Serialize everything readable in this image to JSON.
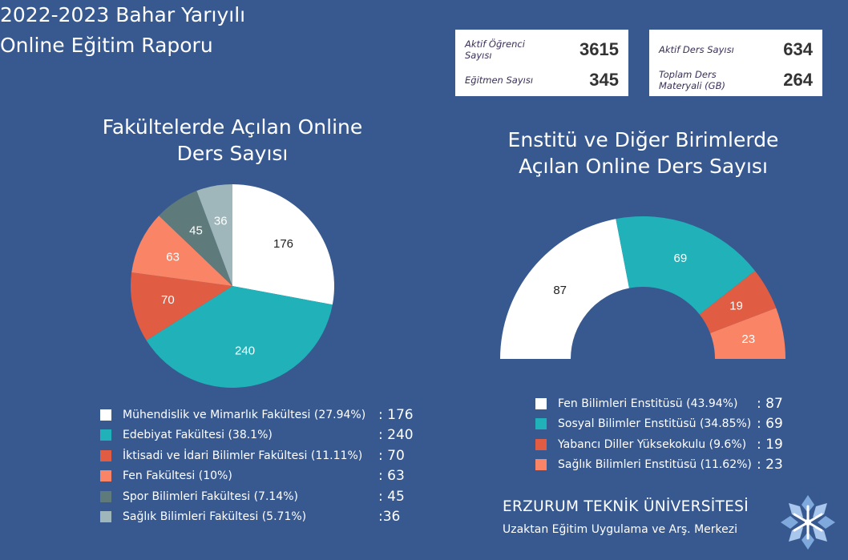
{
  "header": {
    "title_line1": "2022-2023 Bahar Yarıyılı",
    "title_line2": "Online Eğitim Raporu"
  },
  "stats": {
    "left": [
      {
        "label": "Aktif Öğrenci Sayısı",
        "value": "3615"
      },
      {
        "label": "Eğitmen Sayısı",
        "value": "345"
      }
    ],
    "right": [
      {
        "label": "Aktif Ders Sayısı",
        "value": "634"
      },
      {
        "label": "Toplam Ders Materyali (GB)",
        "value": "264"
      }
    ]
  },
  "chart_data": [
    {
      "type": "pie",
      "title_line1": "Fakültelerde Açılan Online",
      "title_line2": "Ders Sayısı",
      "slices": [
        {
          "label": "Mühendislik ve Mimarlık Fakültesi (27.94%)",
          "value": 176,
          "value_text": ": 176",
          "color": "#ffffff",
          "text_color": "#222222"
        },
        {
          "label": "Edebiyat Fakültesi (38.1%)",
          "value": 240,
          "value_text": ": 240",
          "color": "#20b2b8",
          "text_color": "#ffffff"
        },
        {
          "label": "İktisadi ve İdari Bilimler Fakültesi (11.11%)",
          "value": 70,
          "value_text": ": 70",
          "color": "#e05d44",
          "text_color": "#ffffff"
        },
        {
          "label": "Fen Fakültesi (10%)",
          "value": 63,
          "value_text": ": 63",
          "color": "#fa8566",
          "text_color": "#ffffff"
        },
        {
          "label": "Spor Bilimleri Fakültesi (7.14%)",
          "value": 45,
          "value_text": ": 45",
          "color": "#5f7a7b",
          "text_color": "#ffffff"
        },
        {
          "label": "Sağlık Bilimleri Fakültesi (5.71%)",
          "value": 36,
          "value_text": ":36",
          "color": "#9fb7bb",
          "text_color": "#ffffff"
        }
      ]
    },
    {
      "type": "pie",
      "variant": "half-donut",
      "title_line1": "Enstitü ve Diğer Birimlerde",
      "title_line2": "Açılan Online Ders Sayısı",
      "slices": [
        {
          "label": "Fen Bilimleri Enstitüsü (43.94%)",
          "value": 87,
          "value_text": ": 87",
          "color": "#ffffff",
          "text_color": "#222222"
        },
        {
          "label": "Sosyal Bilimler Enstitüsü (34.85%)",
          "value": 69,
          "value_text": ": 69",
          "color": "#20b2b8",
          "text_color": "#ffffff"
        },
        {
          "label": "Yabancı Diller Yüksekokulu (9.6%)",
          "value": 19,
          "value_text": ": 19",
          "color": "#e05d44",
          "text_color": "#ffffff"
        },
        {
          "label": "Sağlık Bilimleri Enstitüsü (11.62%)",
          "value": 23,
          "value_text": ": 23",
          "color": "#fa8566",
          "text_color": "#ffffff"
        }
      ]
    }
  ],
  "footer": {
    "org_name": "ERZURUM TEKNİK ÜNİVERSİTESİ",
    "org_sub": "Uzaktan Eğitim Uygulama ve Arş. Merkezi",
    "logo_icon": "snowflake-logo-icon"
  }
}
